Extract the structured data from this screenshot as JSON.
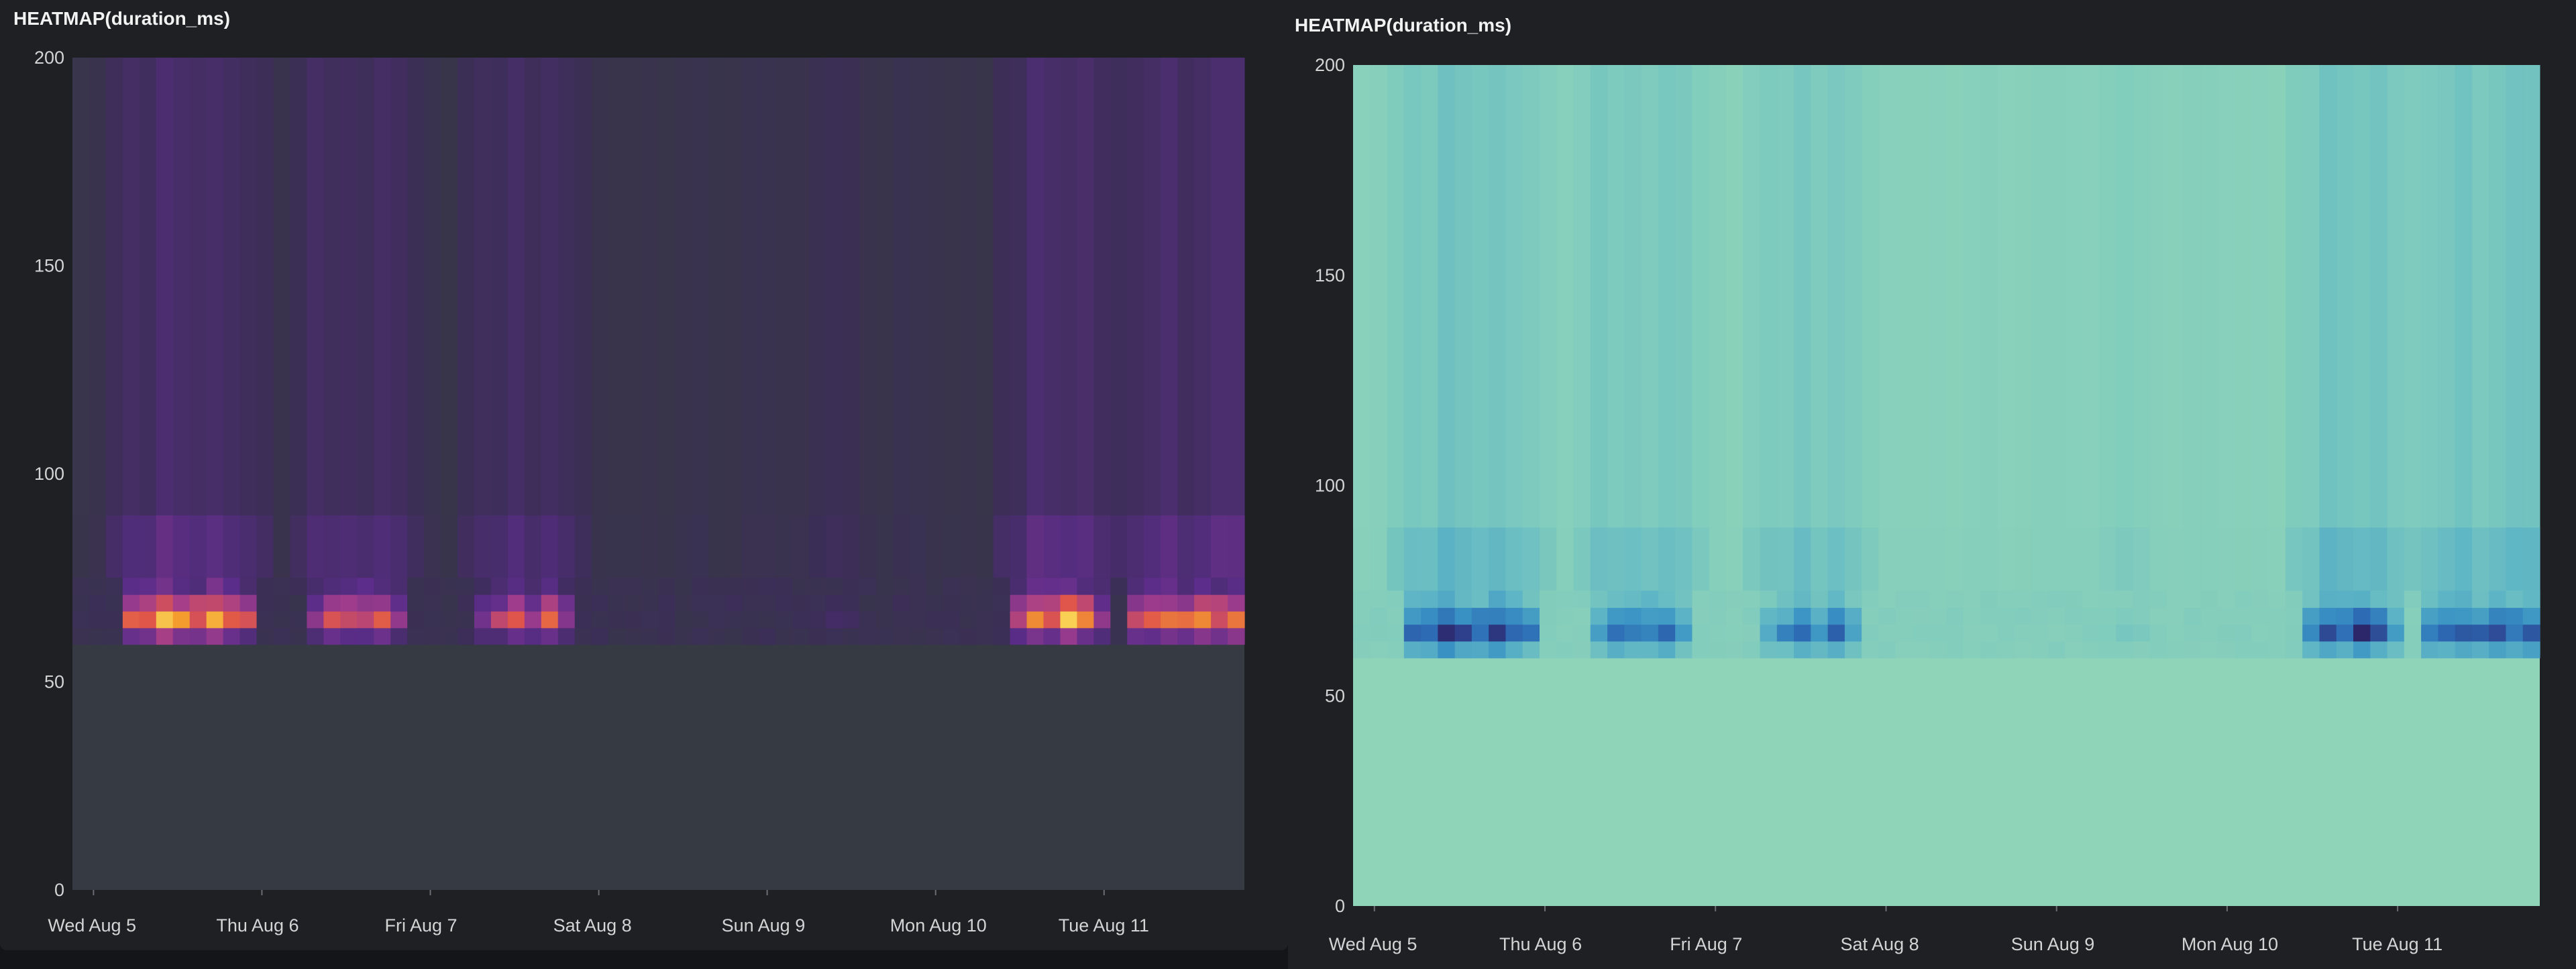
{
  "panels": [
    {
      "title": "HEATMAP(duration_ms)",
      "colors": {
        "background": "#1f2024",
        "plot_background": "#353a43",
        "ramp": [
          "#353a43",
          "#3d2d5a",
          "#5b2d8a",
          "#a33d8c",
          "#e0564a",
          "#f59d2e",
          "#fbe966"
        ]
      }
    },
    {
      "title": "HEATMAP(duration_ms)",
      "colors": {
        "background": "#1f2024",
        "plot_background": "#8fd3b8",
        "ramp": [
          "#8fd3b8",
          "#7fcbbd",
          "#5eb5c5",
          "#3a93c4",
          "#2d6bb4",
          "#2e3f8a",
          "#2a1b5a"
        ]
      }
    }
  ],
  "chart_data": [
    {
      "type": "heatmap",
      "title": "HEATMAP(duration_ms)",
      "colorscale": "inferno (dark)",
      "xlabel": "",
      "ylabel": "",
      "x_ticks": [
        "Wed Aug 5",
        "Thu Aug 6",
        "Fri Aug 7",
        "Sat Aug 8",
        "Sun Aug 9",
        "Mon Aug 10",
        "Tue Aug 11"
      ],
      "x_range": [
        "2020-08-04T21:00",
        "2020-08-11T20:00"
      ],
      "y_ticks": [
        0,
        50,
        100,
        150,
        200
      ],
      "ylim": [
        0,
        200
      ],
      "y_bins": [
        [
          59,
          63
        ],
        [
          63,
          67
        ],
        [
          67,
          71
        ],
        [
          71,
          75
        ]
      ],
      "x_bins": 70,
      "bands": [
        {
          "day": "Wed Aug 5",
          "start": 3,
          "end": 10,
          "peak_y": 65,
          "intensity": 0.95
        },
        {
          "day": "Thu Aug 6",
          "start": 14,
          "end": 19,
          "peak_y": 65,
          "intensity": 0.85
        },
        {
          "day": "Fri Aug 7",
          "start": 24,
          "end": 29,
          "peak_y": 64,
          "intensity": 0.75
        },
        {
          "day": "Sun Aug 9",
          "start": 44,
          "end": 46,
          "peak_y": 65,
          "intensity": 0.3
        },
        {
          "day": "Mon Aug 10",
          "start": 56,
          "end": 61,
          "peak_y": 65,
          "intensity": 0.95
        },
        {
          "day": "Tue Aug 11",
          "start": 63,
          "end": 70,
          "peak_y": 65,
          "intensity": 0.85
        }
      ],
      "grid": false,
      "legend": "none"
    },
    {
      "type": "heatmap",
      "title": "HEATMAP(duration_ms)",
      "colorscale": "mint-blue (light)",
      "xlabel": "",
      "ylabel": "",
      "x_ticks": [
        "Wed Aug 5",
        "Thu Aug 6",
        "Fri Aug 7",
        "Sat Aug 8",
        "Sun Aug 9",
        "Mon Aug 10",
        "Tue Aug 11"
      ],
      "x_range": [
        "2020-08-04T21:00",
        "2020-08-11T20:00"
      ],
      "y_ticks": [
        0,
        50,
        100,
        150,
        200
      ],
      "ylim": [
        0,
        200
      ],
      "y_bins": [
        [
          59,
          63
        ],
        [
          63,
          67
        ],
        [
          67,
          71
        ],
        [
          71,
          75
        ]
      ],
      "x_bins": 70,
      "bands": [
        {
          "day": "Wed Aug 5",
          "start": 3,
          "end": 10,
          "peak_y": 65,
          "intensity": 0.95
        },
        {
          "day": "Thu Aug 6",
          "start": 14,
          "end": 19,
          "peak_y": 65,
          "intensity": 0.85
        },
        {
          "day": "Fri Aug 7",
          "start": 24,
          "end": 29,
          "peak_y": 64,
          "intensity": 0.75
        },
        {
          "day": "Sun Aug 9",
          "start": 44,
          "end": 46,
          "peak_y": 65,
          "intensity": 0.3
        },
        {
          "day": "Mon Aug 10",
          "start": 56,
          "end": 61,
          "peak_y": 65,
          "intensity": 0.95
        },
        {
          "day": "Tue Aug 11",
          "start": 63,
          "end": 70,
          "peak_y": 65,
          "intensity": 0.85
        }
      ],
      "grid": false,
      "legend": "none"
    }
  ]
}
